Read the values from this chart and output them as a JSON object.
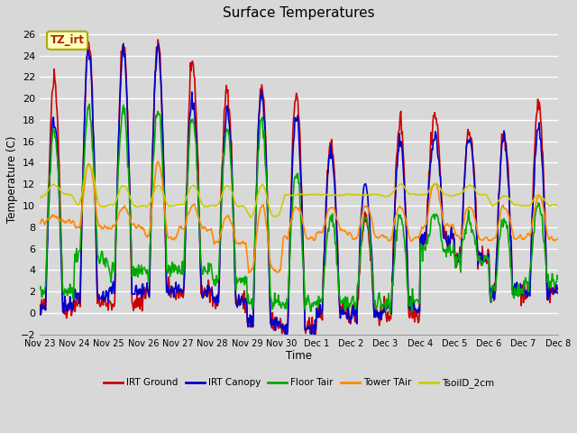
{
  "title": "Surface Temperatures",
  "xlabel": "Time",
  "ylabel": "Temperature (C)",
  "ylim": [
    -2,
    27
  ],
  "bg_color": "#d8d8d8",
  "grid_color": "#ffffff",
  "x_tick_labels": [
    "Nov 23",
    "Nov 24",
    "Nov 25",
    "Nov 26",
    "Nov 27",
    "Nov 28",
    "Nov 29",
    "Nov 30",
    "Dec 1",
    "Dec 2",
    "Dec 3",
    "Dec 4",
    "Dec 5",
    "Dec 6",
    "Dec 7",
    "Dec 8"
  ],
  "annotation_text": "TZ_irt",
  "series_names": [
    "IRT Ground",
    "IRT Canopy",
    "Floor Tair",
    "Tower TAir",
    "TsoilD_2cm"
  ],
  "series_colors": [
    "#cc0000",
    "#0000cc",
    "#00aa00",
    "#ff8800",
    "#cccc00"
  ],
  "series_lw": [
    1.2,
    1.2,
    1.2,
    1.2,
    1.2
  ],
  "n_days": 15,
  "peak_ground": [
    22,
    25,
    25,
    25,
    23,
    21,
    21,
    20.5,
    16,
    9,
    18,
    18.5,
    17,
    17,
    19.5
  ],
  "peak_canopy": [
    18,
    24.5,
    24.5,
    24.5,
    20,
    19,
    20.5,
    18.5,
    15,
    12,
    16,
    16.5,
    16.5,
    16.5,
    17
  ],
  "peak_floor": [
    17,
    19,
    19,
    19,
    18,
    17,
    18,
    13,
    9,
    9,
    9,
    9,
    8.5,
    9,
    10
  ],
  "peak_tower": [
    9,
    14,
    10,
    14,
    10,
    9,
    10,
    10,
    10,
    10,
    10,
    12,
    10,
    10,
    11
  ],
  "peak_soil": [
    12,
    14,
    12,
    12,
    12,
    12,
    12,
    11,
    11,
    11,
    12,
    12,
    12,
    11,
    11
  ],
  "low_ground": [
    0.5,
    1,
    1,
    2,
    2,
    1,
    -1,
    -1.5,
    0,
    0,
    0,
    7,
    5,
    2,
    2
  ],
  "low_canopy": [
    0.5,
    1.5,
    2,
    2,
    2,
    1,
    -1,
    -1.5,
    0,
    0,
    0.5,
    7,
    5,
    2,
    2
  ],
  "low_floor": [
    2,
    5,
    4,
    4,
    4,
    3,
    1,
    1,
    1,
    1,
    1,
    6,
    5,
    2,
    3
  ],
  "low_tower": [
    8.5,
    8,
    8,
    7,
    8,
    6.5,
    4,
    7,
    7.5,
    7,
    7,
    8,
    7,
    7,
    7
  ],
  "low_soil": [
    11,
    10,
    10,
    10,
    10,
    10,
    9,
    11,
    11,
    11,
    11,
    11,
    11,
    10,
    10
  ]
}
